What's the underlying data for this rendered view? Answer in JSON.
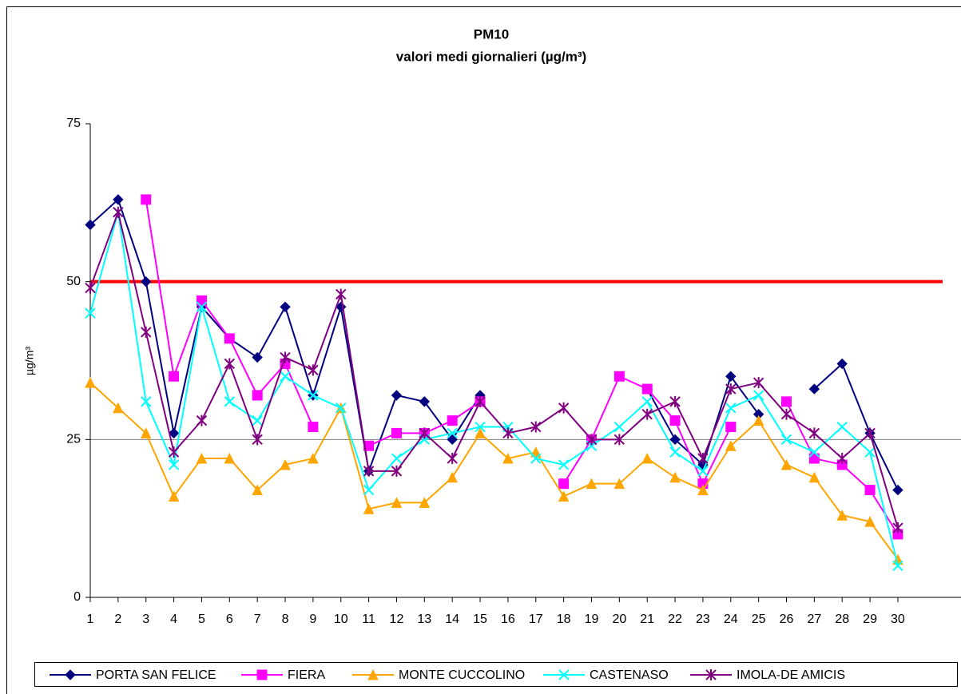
{
  "chart_data": {
    "type": "line",
    "title": "PM10",
    "subtitle": "valori medi giornalieri (µg/m³)",
    "y_label": "µg/m³",
    "categories": [
      "1",
      "2",
      "3",
      "4",
      "5",
      "6",
      "7",
      "8",
      "9",
      "10",
      "11",
      "12",
      "13",
      "14",
      "15",
      "16",
      "17",
      "18",
      "19",
      "20",
      "21",
      "22",
      "23",
      "24",
      "25",
      "26",
      "27",
      "28",
      "29",
      "30"
    ],
    "ylim": [
      0,
      75
    ],
    "yticks": [
      0,
      25,
      50,
      75
    ],
    "reference_lines": [
      {
        "value": 25,
        "color": "#808080"
      },
      {
        "value": 50,
        "color": "#ff0000"
      }
    ],
    "legend": "bottom",
    "series": [
      {
        "name": "PORTA SAN FELICE",
        "color": "#000080",
        "marker": "diamond",
        "values": [
          59,
          63,
          50,
          26,
          46,
          41,
          38,
          46,
          32,
          46,
          20,
          32,
          31,
          25,
          32,
          null,
          null,
          null,
          null,
          null,
          33,
          25,
          21,
          35,
          29,
          null,
          33,
          37,
          26,
          17
        ]
      },
      {
        "name": "FIERA",
        "color": "#ff00ff",
        "marker": "square",
        "values": [
          null,
          null,
          63,
          35,
          47,
          41,
          32,
          37,
          27,
          null,
          24,
          26,
          26,
          28,
          31,
          null,
          null,
          18,
          25,
          35,
          33,
          28,
          18,
          27,
          null,
          31,
          22,
          21,
          17,
          10
        ]
      },
      {
        "name": "MONTE CUCCOLINO",
        "color": "#ffa500",
        "marker": "triangle",
        "values": [
          34,
          30,
          26,
          16,
          22,
          22,
          17,
          21,
          22,
          30,
          14,
          15,
          15,
          19,
          26,
          22,
          23,
          16,
          18,
          18,
          22,
          19,
          17,
          24,
          28,
          21,
          19,
          13,
          12,
          6
        ]
      },
      {
        "name": "CASTENASO",
        "color": "#00ffff",
        "marker": "x",
        "values": [
          45,
          61,
          31,
          21,
          46,
          31,
          28,
          35,
          32,
          30,
          17,
          22,
          25,
          26,
          27,
          27,
          22,
          21,
          24,
          27,
          31,
          23,
          20,
          30,
          32,
          25,
          23,
          27,
          23,
          5
        ]
      },
      {
        "name": "IMOLA-DE AMICIS",
        "color": "#800080",
        "marker": "star",
        "values": [
          49,
          61,
          42,
          23,
          28,
          37,
          25,
          38,
          36,
          48,
          20,
          20,
          26,
          22,
          31,
          26,
          27,
          30,
          25,
          25,
          29,
          31,
          22,
          33,
          34,
          29,
          26,
          22,
          26,
          11
        ]
      }
    ]
  }
}
